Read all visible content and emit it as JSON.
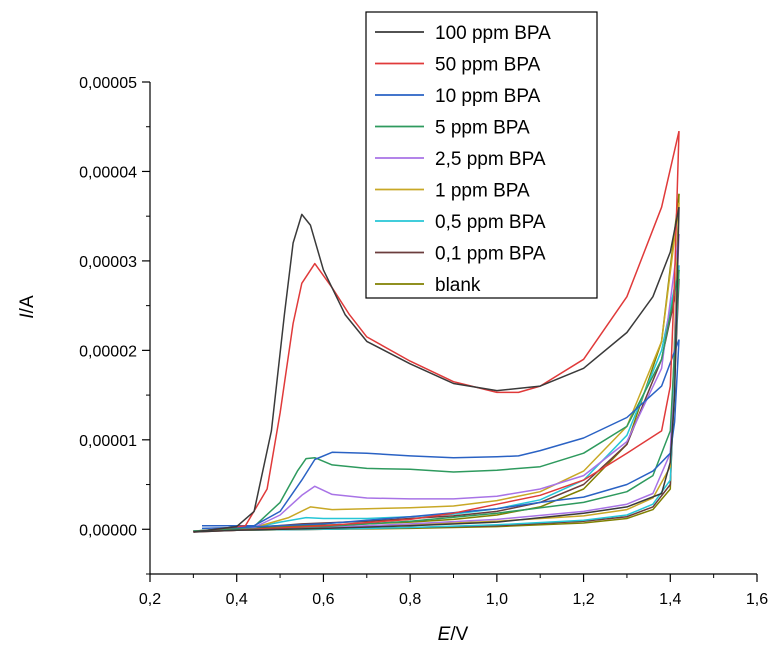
{
  "chart_data": {
    "type": "line",
    "xlabel": {
      "italic": "E",
      "rest": "/V"
    },
    "ylabel": {
      "italic": "I",
      "rest": "/A"
    },
    "xlim": [
      0.2,
      1.6
    ],
    "ylim": [
      -5e-06,
      5e-05
    ],
    "x_ticks": [
      "0,2",
      "0,4",
      "0,6",
      "0,8",
      "1,0",
      "1,2",
      "1,4",
      "1,6"
    ],
    "y_ticks": [
      "0,00000",
      "0,00001",
      "0,00002",
      "0,00003",
      "0,00004",
      "0,00005"
    ],
    "grid": false,
    "legend_position": "top-right",
    "series": [
      {
        "name": "100 ppm BPA",
        "color": "#3a3a3a",
        "forward": [
          [
            0.3,
            -3e-07
          ],
          [
            0.4,
            3e-07
          ],
          [
            0.44,
            2e-06
          ],
          [
            0.48,
            1.1e-05
          ],
          [
            0.51,
            2.4e-05
          ],
          [
            0.53,
            3.2e-05
          ],
          [
            0.55,
            3.52e-05
          ],
          [
            0.57,
            3.4e-05
          ],
          [
            0.6,
            2.9e-05
          ],
          [
            0.65,
            2.4e-05
          ],
          [
            0.7,
            2.1e-05
          ],
          [
            0.8,
            1.85e-05
          ],
          [
            0.9,
            1.63e-05
          ],
          [
            1.0,
            1.55e-05
          ],
          [
            1.1,
            1.6e-05
          ],
          [
            1.2,
            1.8e-05
          ],
          [
            1.3,
            2.2e-05
          ],
          [
            1.36,
            2.6e-05
          ],
          [
            1.4,
            3.1e-05
          ],
          [
            1.42,
            3.6e-05
          ]
        ],
        "reverse": [
          [
            1.42,
            3.6e-05
          ],
          [
            1.41,
            1.5e-05
          ],
          [
            1.4,
            7.5e-06
          ],
          [
            1.38,
            4e-06
          ],
          [
            1.3,
            2.5e-06
          ],
          [
            1.2,
            1.8e-06
          ],
          [
            1.0,
            8e-07
          ],
          [
            0.8,
            4e-07
          ],
          [
            0.6,
            1e-07
          ],
          [
            0.4,
            -1e-07
          ],
          [
            0.3,
            -3e-07
          ]
        ]
      },
      {
        "name": "50 ppm BPA",
        "color": "#e03a3a",
        "forward": [
          [
            0.3,
            -3e-07
          ],
          [
            0.42,
            4e-07
          ],
          [
            0.47,
            4.5e-06
          ],
          [
            0.5,
            1.3e-05
          ],
          [
            0.53,
            2.3e-05
          ],
          [
            0.55,
            2.75e-05
          ],
          [
            0.58,
            2.97e-05
          ],
          [
            0.62,
            2.7e-05
          ],
          [
            0.66,
            2.4e-05
          ],
          [
            0.7,
            2.15e-05
          ],
          [
            0.8,
            1.88e-05
          ],
          [
            0.9,
            1.65e-05
          ],
          [
            1.0,
            1.53e-05
          ],
          [
            1.05,
            1.53e-05
          ],
          [
            1.1,
            1.6e-05
          ],
          [
            1.2,
            1.9e-05
          ],
          [
            1.3,
            2.6e-05
          ],
          [
            1.38,
            3.6e-05
          ],
          [
            1.42,
            4.45e-05
          ]
        ],
        "reverse": [
          [
            1.42,
            4.45e-05
          ],
          [
            1.41,
            2.8e-05
          ],
          [
            1.4,
            1.6e-05
          ],
          [
            1.38,
            1.1e-05
          ],
          [
            1.3,
            8.5e-06
          ],
          [
            1.2,
            5.5e-06
          ],
          [
            1.1,
            3.8e-06
          ],
          [
            1.0,
            2.8e-06
          ],
          [
            0.9,
            1.8e-06
          ],
          [
            0.8,
            1.1e-06
          ],
          [
            0.6,
            4e-07
          ],
          [
            0.4,
            -1e-07
          ],
          [
            0.3,
            -3e-07
          ]
        ]
      },
      {
        "name": "10 ppm BPA",
        "color": "#2a62c4",
        "forward": [
          [
            0.32,
            4e-07
          ],
          [
            0.44,
            4e-07
          ],
          [
            0.5,
            2e-06
          ],
          [
            0.55,
            5.5e-06
          ],
          [
            0.58,
            7.8e-06
          ],
          [
            0.62,
            8.6e-06
          ],
          [
            0.7,
            8.5e-06
          ],
          [
            0.8,
            8.2e-06
          ],
          [
            0.9,
            8e-06
          ],
          [
            1.0,
            8.1e-06
          ],
          [
            1.05,
            8.2e-06
          ],
          [
            1.1,
            8.8e-06
          ],
          [
            1.2,
            1.02e-05
          ],
          [
            1.3,
            1.25e-05
          ],
          [
            1.38,
            1.6e-05
          ],
          [
            1.42,
            2.12e-05
          ]
        ],
        "reverse": [
          [
            1.42,
            2.12e-05
          ],
          [
            1.41,
            1.2e-05
          ],
          [
            1.4,
            8.5e-06
          ],
          [
            1.36,
            6.5e-06
          ],
          [
            1.3,
            5e-06
          ],
          [
            1.2,
            3.6e-06
          ],
          [
            1.1,
            3e-06
          ],
          [
            1.0,
            2.3e-06
          ],
          [
            0.8,
            1.4e-06
          ],
          [
            0.6,
            6e-07
          ],
          [
            0.4,
            2e-07
          ],
          [
            0.32,
            1e-07
          ]
        ]
      },
      {
        "name": "5 ppm BPA",
        "color": "#2e9a5e",
        "forward": [
          [
            0.3,
            -2e-07
          ],
          [
            0.44,
            3e-07
          ],
          [
            0.5,
            3e-06
          ],
          [
            0.54,
            6.5e-06
          ],
          [
            0.56,
            7.9e-06
          ],
          [
            0.58,
            8e-06
          ],
          [
            0.62,
            7.2e-06
          ],
          [
            0.7,
            6.8e-06
          ],
          [
            0.8,
            6.7e-06
          ],
          [
            0.9,
            6.4e-06
          ],
          [
            1.0,
            6.6e-06
          ],
          [
            1.1,
            7e-06
          ],
          [
            1.2,
            8.5e-06
          ],
          [
            1.3,
            1.15e-05
          ],
          [
            1.38,
            1.9e-05
          ],
          [
            1.42,
            2.9e-05
          ]
        ],
        "reverse": [
          [
            1.42,
            2.9e-05
          ],
          [
            1.4,
            1.1e-05
          ],
          [
            1.36,
            6e-06
          ],
          [
            1.3,
            4.2e-06
          ],
          [
            1.2,
            3e-06
          ],
          [
            1.0,
            1.8e-06
          ],
          [
            0.8,
            9e-07
          ],
          [
            0.6,
            3e-07
          ],
          [
            0.4,
            0.0
          ],
          [
            0.3,
            -2e-07
          ]
        ]
      },
      {
        "name": "2,5 ppm BPA",
        "color": "#a873e6",
        "forward": [
          [
            0.3,
            -2e-07
          ],
          [
            0.44,
            2e-07
          ],
          [
            0.5,
            1.6e-06
          ],
          [
            0.55,
            3.8e-06
          ],
          [
            0.58,
            4.8e-06
          ],
          [
            0.62,
            3.9e-06
          ],
          [
            0.7,
            3.5e-06
          ],
          [
            0.8,
            3.4e-06
          ],
          [
            0.9,
            3.4e-06
          ],
          [
            1.0,
            3.7e-06
          ],
          [
            1.1,
            4.5e-06
          ],
          [
            1.2,
            6e-06
          ],
          [
            1.3,
            9.8e-06
          ],
          [
            1.38,
            1.8e-05
          ],
          [
            1.42,
            3.3e-05
          ]
        ],
        "reverse": [
          [
            1.42,
            3.3e-05
          ],
          [
            1.4,
            8.5e-06
          ],
          [
            1.36,
            4e-06
          ],
          [
            1.3,
            2.8e-06
          ],
          [
            1.2,
            2e-06
          ],
          [
            1.0,
            1.1e-06
          ],
          [
            0.8,
            6e-07
          ],
          [
            0.6,
            2e-07
          ],
          [
            0.4,
            -1e-07
          ],
          [
            0.3,
            -2e-07
          ]
        ]
      },
      {
        "name": "1 ppm BPA",
        "color": "#c8a826",
        "forward": [
          [
            0.3,
            -2e-07
          ],
          [
            0.44,
            2e-07
          ],
          [
            0.52,
            1.3e-06
          ],
          [
            0.57,
            2.5e-06
          ],
          [
            0.62,
            2.2e-06
          ],
          [
            0.7,
            2.3e-06
          ],
          [
            0.8,
            2.4e-06
          ],
          [
            0.9,
            2.6e-06
          ],
          [
            1.0,
            3.2e-06
          ],
          [
            1.1,
            4.2e-06
          ],
          [
            1.2,
            6.5e-06
          ],
          [
            1.3,
            1.15e-05
          ],
          [
            1.38,
            2.1e-05
          ],
          [
            1.42,
            3.65e-05
          ]
        ],
        "reverse": [
          [
            1.42,
            3.65e-05
          ],
          [
            1.4,
            7e-06
          ],
          [
            1.36,
            3.5e-06
          ],
          [
            1.3,
            2.2e-06
          ],
          [
            1.2,
            1.5e-06
          ],
          [
            1.0,
            9e-07
          ],
          [
            0.8,
            5e-07
          ],
          [
            0.6,
            1e-07
          ],
          [
            0.4,
            -1e-07
          ],
          [
            0.3,
            -2e-07
          ]
        ]
      },
      {
        "name": "0,5 ppm BPA",
        "color": "#26c6d6",
        "forward": [
          [
            0.3,
            -2e-07
          ],
          [
            0.44,
            2e-07
          ],
          [
            0.5,
            8e-07
          ],
          [
            0.56,
            1.3e-06
          ],
          [
            0.6,
            1.2e-06
          ],
          [
            0.7,
            1.2e-06
          ],
          [
            0.8,
            1.4e-06
          ],
          [
            0.9,
            1.7e-06
          ],
          [
            1.0,
            2.3e-06
          ],
          [
            1.1,
            3.3e-06
          ],
          [
            1.2,
            5.5e-06
          ],
          [
            1.3,
            1.05e-05
          ],
          [
            1.38,
            2e-05
          ],
          [
            1.42,
            2.95e-05
          ]
        ],
        "reverse": [
          [
            1.42,
            2.95e-05
          ],
          [
            1.4,
            5.5e-06
          ],
          [
            1.36,
            2.8e-06
          ],
          [
            1.3,
            1.6e-06
          ],
          [
            1.2,
            1e-06
          ],
          [
            1.0,
            5e-07
          ],
          [
            0.8,
            2e-07
          ],
          [
            0.6,
            0.0
          ],
          [
            0.4,
            -1e-07
          ],
          [
            0.3,
            -2e-07
          ]
        ]
      },
      {
        "name": "0,1 ppm BPA",
        "color": "#6b3d3d",
        "forward": [
          [
            0.3,
            -2e-07
          ],
          [
            0.44,
            2e-07
          ],
          [
            0.55,
            6e-07
          ],
          [
            0.7,
            9e-07
          ],
          [
            0.8,
            1.2e-06
          ],
          [
            0.9,
            1.5e-06
          ],
          [
            1.0,
            2e-06
          ],
          [
            1.1,
            3e-06
          ],
          [
            1.2,
            5e-06
          ],
          [
            1.3,
            9.5e-06
          ],
          [
            1.38,
            1.9e-05
          ],
          [
            1.42,
            2.8e-05
          ]
        ],
        "reverse": [
          [
            1.42,
            2.8e-05
          ],
          [
            1.4,
            5e-06
          ],
          [
            1.36,
            2.5e-06
          ],
          [
            1.3,
            1.4e-06
          ],
          [
            1.2,
            9e-07
          ],
          [
            1.0,
            4e-07
          ],
          [
            0.8,
            2e-07
          ],
          [
            0.6,
            0.0
          ],
          [
            0.4,
            -1e-07
          ],
          [
            0.3,
            -2e-07
          ]
        ]
      },
      {
        "name": "blank",
        "color": "#808000",
        "forward": [
          [
            0.3,
            -2e-07
          ],
          [
            0.44,
            1e-07
          ],
          [
            0.55,
            4e-07
          ],
          [
            0.7,
            6e-07
          ],
          [
            0.8,
            8e-07
          ],
          [
            0.9,
            1.1e-06
          ],
          [
            1.0,
            1.6e-06
          ],
          [
            1.1,
            2.5e-06
          ],
          [
            1.2,
            4.5e-06
          ],
          [
            1.3,
            9.5e-06
          ],
          [
            1.38,
            2.1e-05
          ],
          [
            1.42,
            3.75e-05
          ]
        ],
        "reverse": [
          [
            1.42,
            3.75e-05
          ],
          [
            1.4,
            4.5e-06
          ],
          [
            1.36,
            2.2e-06
          ],
          [
            1.3,
            1.2e-06
          ],
          [
            1.2,
            7e-07
          ],
          [
            1.0,
            3e-07
          ],
          [
            0.8,
            1e-07
          ],
          [
            0.6,
            0.0
          ],
          [
            0.4,
            -1e-07
          ],
          [
            0.3,
            -2e-07
          ]
        ]
      }
    ]
  }
}
